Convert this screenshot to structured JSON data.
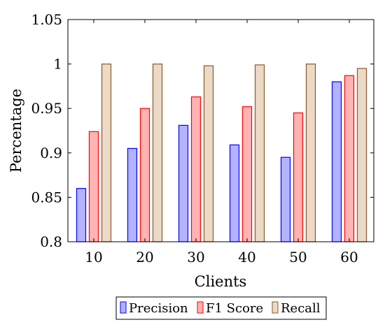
{
  "chart_data": {
    "type": "bar",
    "title": "",
    "xlabel": "Clients",
    "ylabel": "Percentage",
    "categories": [
      "10",
      "20",
      "30",
      "40",
      "50",
      "60"
    ],
    "ylim": [
      0.8,
      1.05
    ],
    "yticks": [
      "0.8",
      "0.85",
      "0.9",
      "0.95",
      "1",
      "1.05"
    ],
    "grid": false,
    "legend_position": "bottom",
    "series": [
      {
        "name": "Precision",
        "values": [
          0.86,
          0.905,
          0.931,
          0.909,
          0.895,
          0.98
        ],
        "color": "#b3b3ff",
        "stroke": "#0000ff"
      },
      {
        "name": "F1 Score",
        "values": [
          0.924,
          0.95,
          0.963,
          0.952,
          0.945,
          0.987
        ],
        "color": "#ffb3b3",
        "stroke": "#ff0000"
      },
      {
        "name": "Recall",
        "values": [
          1.0,
          1.0,
          0.998,
          0.999,
          1.0,
          0.995
        ],
        "color": "#ecd9c6",
        "stroke": "#8b5a2b"
      }
    ]
  }
}
